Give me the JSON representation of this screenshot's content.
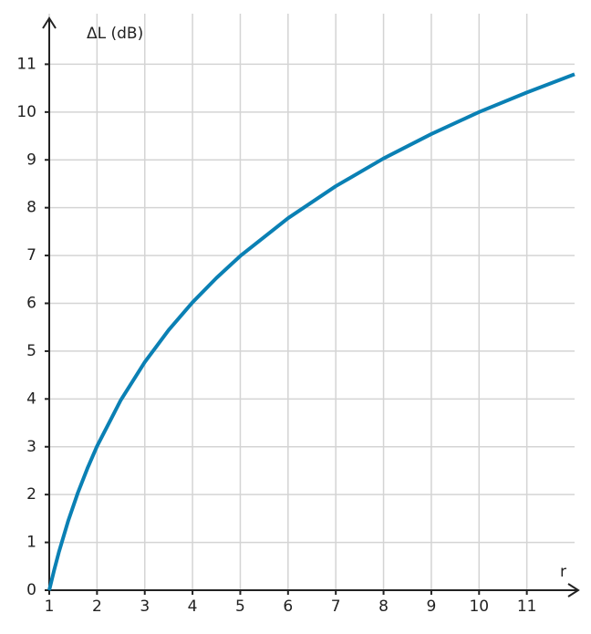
{
  "chart_data": {
    "type": "line",
    "y_label": "ΔL (dB)",
    "x_label": "r",
    "x": [
      1,
      1.1,
      1.2,
      1.4,
      1.6,
      1.8,
      2,
      2.5,
      3,
      3.5,
      4,
      4.5,
      5,
      6,
      7,
      8,
      9,
      10,
      11,
      12
    ],
    "series": [
      {
        "color": "#0a80b4",
        "values": [
          0,
          0.41,
          0.79,
          1.46,
          2.04,
          2.55,
          3.01,
          3.98,
          4.77,
          5.44,
          6.02,
          6.53,
          6.99,
          7.78,
          8.45,
          9.03,
          9.54,
          10,
          10.41,
          10.79
        ]
      }
    ],
    "xlim": [
      1,
      12
    ],
    "ylim": [
      0,
      12
    ],
    "xticks": [
      1,
      2,
      3,
      4,
      5,
      6,
      7,
      8,
      9,
      10,
      11
    ],
    "yticks": [
      0,
      1,
      2,
      3,
      4,
      5,
      6,
      7,
      8,
      9,
      10,
      11
    ],
    "grid": true
  }
}
